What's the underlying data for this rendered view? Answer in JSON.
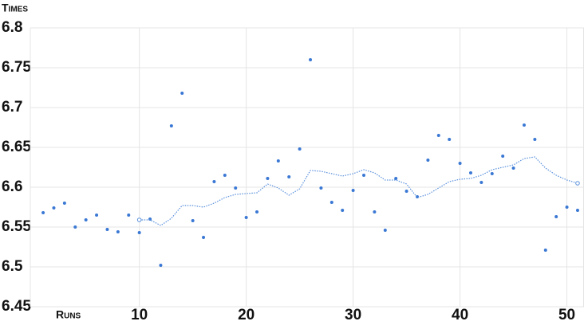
{
  "chart_data": {
    "type": "scatter",
    "y_label": "Times",
    "x_label": "Runs",
    "xlim": [
      -0.2,
      51.6
    ],
    "ylim": [
      6.45,
      6.8
    ],
    "xticks": [
      10,
      20,
      30,
      40,
      50
    ],
    "yticks": [
      6.45,
      6.5,
      6.55,
      6.6,
      6.65,
      6.7,
      6.75,
      6.8
    ],
    "grid": true,
    "series": [
      {
        "type": "scatter",
        "color": "#3a78d4",
        "x": [
          1,
          2,
          3,
          4,
          5,
          6,
          7,
          8,
          9,
          10,
          11,
          12,
          13,
          14,
          15,
          16,
          17,
          18,
          19,
          20,
          21,
          22,
          23,
          24,
          25,
          26,
          27,
          28,
          29,
          30,
          31,
          32,
          33,
          34,
          35,
          36,
          37,
          38,
          39,
          40,
          41,
          42,
          43,
          44,
          45,
          46,
          47,
          48,
          49,
          50,
          51
        ],
        "values": [
          6.568,
          6.574,
          6.58,
          6.55,
          6.559,
          6.565,
          6.547,
          6.544,
          6.565,
          6.543,
          6.56,
          6.502,
          6.677,
          6.718,
          6.558,
          6.537,
          6.607,
          6.615,
          6.599,
          6.562,
          6.569,
          6.611,
          6.633,
          6.613,
          6.648,
          6.76,
          6.599,
          6.581,
          6.571,
          6.596,
          6.615,
          6.569,
          6.546,
          6.611,
          6.595,
          6.588,
          6.634,
          6.665,
          6.66,
          6.63,
          6.618,
          6.606,
          6.617,
          6.639,
          6.624,
          6.678,
          6.66,
          6.521,
          6.563,
          6.575,
          6.571
        ]
      },
      {
        "type": "line",
        "color": "#5a90dc",
        "x": [
          10,
          11,
          12,
          13,
          14,
          15,
          16,
          17,
          18,
          19,
          20,
          21,
          22,
          23,
          24,
          25,
          26,
          27,
          28,
          29,
          30,
          31,
          32,
          33,
          34,
          35,
          36,
          37,
          38,
          39,
          40,
          41,
          42,
          43,
          44,
          45,
          46,
          47,
          48,
          49,
          50,
          51
        ],
        "values": [
          6.559,
          6.559,
          6.552,
          6.561,
          6.577,
          6.577,
          6.575,
          6.58,
          6.587,
          6.591,
          6.592,
          6.593,
          6.604,
          6.599,
          6.59,
          6.598,
          6.621,
          6.62,
          6.617,
          6.614,
          6.617,
          6.622,
          6.618,
          6.609,
          6.609,
          6.604,
          6.587,
          6.591,
          6.599,
          6.607,
          6.61,
          6.611,
          6.615,
          6.622,
          6.625,
          6.628,
          6.636,
          6.638,
          6.624,
          6.615,
          6.609,
          6.605
        ]
      }
    ]
  }
}
